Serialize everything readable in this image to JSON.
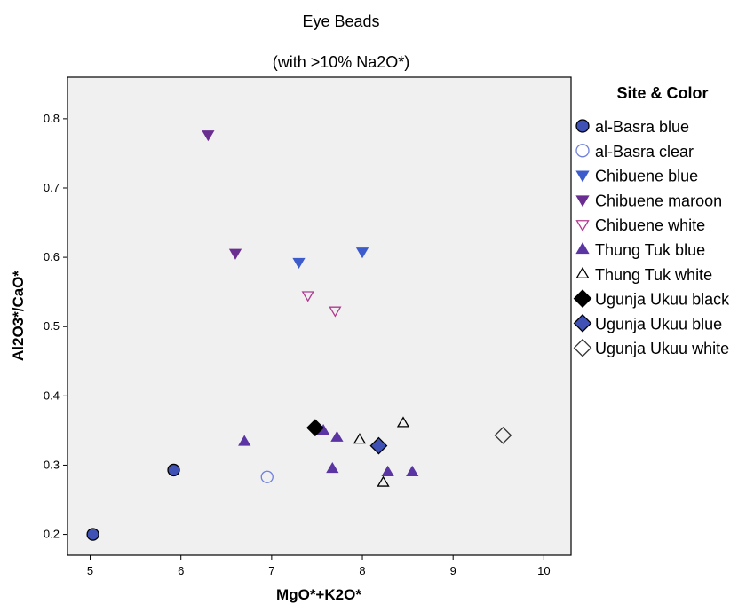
{
  "chart_data": {
    "type": "scatter",
    "title": "Eye Beads",
    "subtitle": "(with >10% Na2O*)",
    "xlabel": "MgO*+K2O*",
    "ylabel": "Al2O3*/CaO*",
    "xlim": [
      4.75,
      10.3
    ],
    "ylim": [
      0.17,
      0.86
    ],
    "xticks": [
      5,
      6,
      7,
      8,
      9,
      10
    ],
    "yticks": [
      0.2,
      0.3,
      0.4,
      0.5,
      0.6,
      0.7,
      0.8
    ],
    "grid": false,
    "legend": {
      "title": "Site & Color",
      "placement": "right"
    },
    "series": [
      {
        "name": "al-Basra blue",
        "marker": "circle",
        "fill": "#3f51b5",
        "stroke": "#000000",
        "points": [
          [
            5.03,
            0.2
          ],
          [
            5.92,
            0.293
          ]
        ]
      },
      {
        "name": "al-Basra clear",
        "marker": "circle",
        "fill": "none",
        "stroke": "#6f7fdc",
        "points": [
          [
            6.95,
            0.283
          ]
        ]
      },
      {
        "name": "Chibuene blue",
        "marker": "triangle-down",
        "fill": "#3d5ccc",
        "stroke": "#3d5ccc",
        "points": [
          [
            7.3,
            0.593
          ],
          [
            8.0,
            0.608
          ]
        ]
      },
      {
        "name": "Chibuene maroon",
        "marker": "triangle-down",
        "fill": "#6a2d91",
        "stroke": "#6a2d91",
        "points": [
          [
            6.3,
            0.777
          ],
          [
            6.6,
            0.606
          ]
        ]
      },
      {
        "name": "Chibuene white",
        "marker": "triangle-down",
        "fill": "none",
        "stroke": "#b03a8f",
        "points": [
          [
            7.4,
            0.545
          ],
          [
            7.7,
            0.523
          ]
        ]
      },
      {
        "name": "Thung Tuk blue",
        "marker": "triangle-up",
        "fill": "#5a35a3",
        "stroke": "#5a35a3",
        "points": [
          [
            6.7,
            0.334
          ],
          [
            7.57,
            0.35
          ],
          [
            7.72,
            0.34
          ],
          [
            7.67,
            0.295
          ],
          [
            8.28,
            0.29
          ],
          [
            8.55,
            0.29
          ]
        ]
      },
      {
        "name": "Thung Tuk white",
        "marker": "triangle-up",
        "fill": "none",
        "stroke": "#000000",
        "points": [
          [
            7.97,
            0.337
          ],
          [
            8.45,
            0.361
          ],
          [
            8.23,
            0.275
          ]
        ]
      },
      {
        "name": "Ugunja Ukuu black",
        "marker": "diamond",
        "fill": "#000000",
        "stroke": "#000000",
        "points": [
          [
            7.48,
            0.354
          ]
        ]
      },
      {
        "name": "Ugunja Ukuu blue",
        "marker": "diamond",
        "fill": "#3f51b5",
        "stroke": "#000000",
        "points": [
          [
            8.18,
            0.328
          ]
        ]
      },
      {
        "name": "Ugunja Ukuu white",
        "marker": "diamond",
        "fill": "none",
        "stroke": "#333333",
        "points": [
          [
            9.55,
            0.343
          ]
        ]
      }
    ]
  }
}
